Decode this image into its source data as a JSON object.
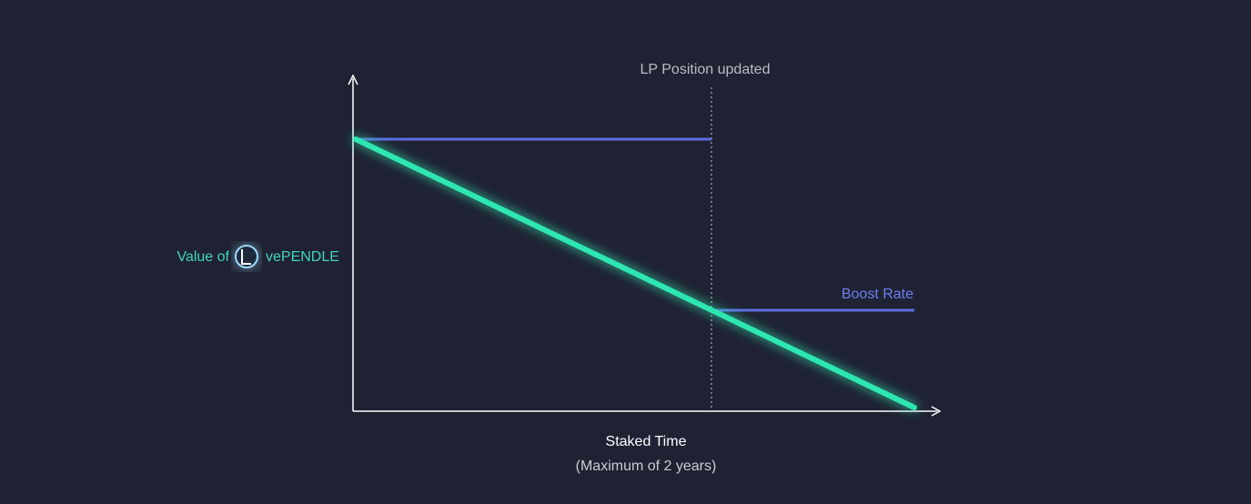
{
  "labels": {
    "marker": "LP Position updated",
    "y_axis_prefix": "Value of",
    "y_axis_token": "vePENDLE",
    "series": "Boost Rate",
    "x_axis": "Staked Time",
    "x_axis_note": "(Maximum of 2 years)"
  }
}
